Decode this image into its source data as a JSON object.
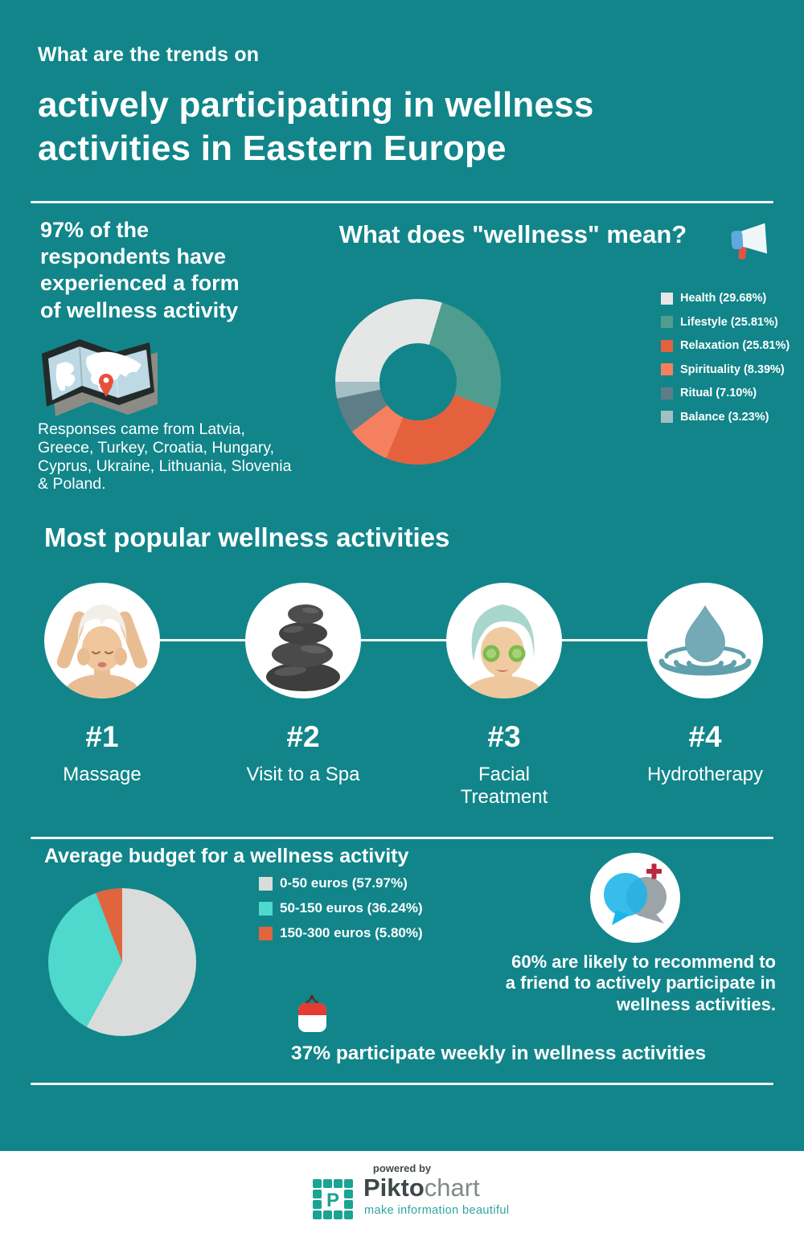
{
  "page": {
    "bg": "#11858a",
    "kicker": "What are the trends on",
    "title": "actively participating in wellness\nactivities in Eastern Europe"
  },
  "stats": {
    "respondents": "97% of the\nrespondents have\nexperienced a form\nof wellness activity",
    "map_icon": "folded-map-icon",
    "responses": "Responses came from Latvia,\nGreece, Turkey, Croatia, Hungary,\nCyprus, Ukraine, Lithuania, Slovenia\n& Poland."
  },
  "wellness_meaning": {
    "heading": "What does \"wellness\" mean?",
    "icon": "megaphone-icon"
  },
  "chart_data": [
    {
      "type": "pie",
      "variant": "donut",
      "title": "What does \"wellness\" mean?",
      "labels": [
        "Health",
        "Lifestyle",
        "Relaxation",
        "Spirituality",
        "Ritual",
        "Balance"
      ],
      "values": [
        29.68,
        25.81,
        25.81,
        8.39,
        7.1,
        3.23
      ],
      "colors": [
        "#e5e6e6",
        "#4f9d8e",
        "#e5613e",
        "#f4805f",
        "#5d7e86",
        "#a4bfc3"
      ],
      "legend_position": "right",
      "start_angle_deg": 270,
      "inner_radius_ratio": 0.47
    },
    {
      "type": "pie",
      "variant": "pie",
      "title": "Average budget for a wellness activity",
      "labels": [
        "0-50 euros",
        "50-150 euros",
        "150-300 euros"
      ],
      "values": [
        57.97,
        36.24,
        5.8
      ],
      "colors": [
        "#dadcdb",
        "#4fd8cc",
        "#e0653e"
      ],
      "legend_position": "right",
      "start_angle_deg": 0
    }
  ],
  "popular": {
    "heading": "Most popular wellness activities",
    "items": [
      {
        "rank": "#1",
        "label": "Massage",
        "icon": "massage-icon"
      },
      {
        "rank": "#2",
        "label": "Visit to a Spa",
        "icon": "spa-stones-icon"
      },
      {
        "rank": "#3",
        "label": "Facial\nTreatment",
        "icon": "facial-treatment-icon"
      },
      {
        "rank": "#4",
        "label": "Hydrotherapy",
        "icon": "hydrotherapy-icon"
      }
    ]
  },
  "budget": {
    "heading": "Average budget for a wellness activity"
  },
  "facts": {
    "recommend": "60% are likely to recommend to\na friend to actively participate in\nwellness activities.",
    "recommend_icon": "chat-bubbles-icon",
    "weekly": "37% participate weekly in wellness activities",
    "weekly_icon": "calendar-icon"
  },
  "footer": {
    "powered_by": "powered by",
    "brand_bold": "Pikto",
    "brand_light": "chart",
    "tagline": "make information beautiful",
    "icon": "piktochart-logo-icon"
  }
}
